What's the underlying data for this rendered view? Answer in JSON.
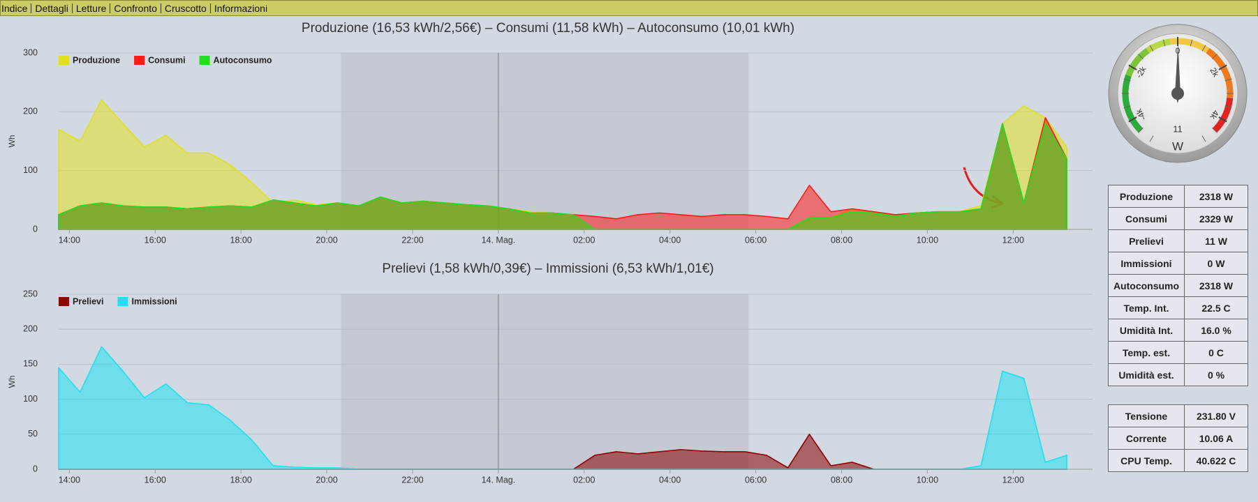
{
  "nav": [
    "Indice",
    "Dettagli",
    "Letture",
    "Confronto",
    "Cruscotto",
    "Informazioni"
  ],
  "chart_data": [
    {
      "type": "area",
      "title": "Produzione (16,53 kWh/2,56€) – Consumi (11,58 kWh) – Autoconsumo (10,01 kWh)",
      "y_label": "Wh",
      "legend": "top-left",
      "grid": true,
      "xlim": [
        13.75,
        37.85
      ],
      "ylim": [
        0,
        300
      ],
      "yticks": [
        0,
        100,
        200,
        300
      ],
      "xticks": [
        {
          "value": 14,
          "label": "14:00"
        },
        {
          "value": 16,
          "label": "16:00"
        },
        {
          "value": 18,
          "label": "18:00"
        },
        {
          "value": 20,
          "label": "20:00"
        },
        {
          "value": 22,
          "label": "22:00"
        },
        {
          "value": 24,
          "label": "14. Mag."
        },
        {
          "value": 26,
          "label": "02:00"
        },
        {
          "value": 28,
          "label": "04:00"
        },
        {
          "value": 30,
          "label": "06:00"
        },
        {
          "value": 32,
          "label": "08:00"
        },
        {
          "value": 34,
          "label": "10:00"
        },
        {
          "value": 36,
          "label": "12:00"
        }
      ],
      "night_band": [
        20.33,
        29.83
      ],
      "day_line": 24,
      "x": [
        13.75,
        14.25,
        14.75,
        15.25,
        15.75,
        16.25,
        16.75,
        17.25,
        17.75,
        18.25,
        18.75,
        19.25,
        19.75,
        20.25,
        20.75,
        21.25,
        21.75,
        22.25,
        22.75,
        23.25,
        23.75,
        24.25,
        24.75,
        25.25,
        25.75,
        26.25,
        26.75,
        27.25,
        27.75,
        28.25,
        28.75,
        29.25,
        29.75,
        30.25,
        30.75,
        31.25,
        31.75,
        32.25,
        32.75,
        33.25,
        33.75,
        34.25,
        34.75,
        35.25,
        35.75,
        36.25,
        36.75,
        37.25
      ],
      "series": [
        {
          "name": "Produzione",
          "color": "#e0e020",
          "values": [
            170,
            150,
            220,
            180,
            140,
            160,
            130,
            130,
            110,
            80,
            45,
            50,
            42,
            45,
            40,
            55,
            45,
            45,
            45,
            40,
            40,
            35,
            30,
            28,
            25,
            0,
            0,
            0,
            0,
            0,
            0,
            0,
            0,
            0,
            0,
            20,
            20,
            35,
            30,
            22,
            28,
            30,
            30,
            40,
            180,
            210,
            190,
            140
          ]
        },
        {
          "name": "Consumi",
          "color": "#ff1a1a",
          "values": [
            25,
            40,
            45,
            40,
            38,
            38,
            35,
            38,
            40,
            38,
            50,
            45,
            40,
            45,
            40,
            55,
            45,
            48,
            45,
            42,
            40,
            35,
            28,
            28,
            25,
            22,
            18,
            25,
            28,
            25,
            22,
            25,
            25,
            22,
            18,
            75,
            30,
            35,
            30,
            25,
            28,
            30,
            30,
            35,
            180,
            45,
            190,
            120
          ]
        },
        {
          "name": "Autoconsumo",
          "color": "#22dd22",
          "values": [
            25,
            40,
            45,
            40,
            38,
            38,
            35,
            38,
            40,
            38,
            50,
            45,
            40,
            45,
            40,
            55,
            45,
            48,
            45,
            42,
            40,
            35,
            28,
            28,
            25,
            0,
            0,
            0,
            0,
            0,
            0,
            0,
            0,
            0,
            0,
            20,
            20,
            30,
            28,
            22,
            28,
            30,
            30,
            35,
            180,
            45,
            180,
            120
          ]
        }
      ]
    },
    {
      "type": "area",
      "title": "Prelievi (1,58 kWh/0,39€) – Immissioni (6,53 kWh/1,01€)",
      "y_label": "Wh",
      "legend": "top-left",
      "grid": true,
      "xlim": [
        13.75,
        37.85
      ],
      "ylim": [
        0,
        250
      ],
      "yticks": [
        0,
        50,
        100,
        150,
        200,
        250
      ],
      "xticks": [
        {
          "value": 14,
          "label": "14:00"
        },
        {
          "value": 16,
          "label": "16:00"
        },
        {
          "value": 18,
          "label": "18:00"
        },
        {
          "value": 20,
          "label": "20:00"
        },
        {
          "value": 22,
          "label": "22:00"
        },
        {
          "value": 24,
          "label": "14. Mag."
        },
        {
          "value": 26,
          "label": "02:00"
        },
        {
          "value": 28,
          "label": "04:00"
        },
        {
          "value": 30,
          "label": "06:00"
        },
        {
          "value": 32,
          "label": "08:00"
        },
        {
          "value": 34,
          "label": "10:00"
        },
        {
          "value": 36,
          "label": "12:00"
        }
      ],
      "night_band": [
        20.33,
        29.83
      ],
      "day_line": 24,
      "x": [
        13.75,
        14.25,
        14.75,
        15.25,
        15.75,
        16.25,
        16.75,
        17.25,
        17.75,
        18.25,
        18.75,
        19.25,
        19.75,
        20.25,
        20.75,
        21.25,
        21.75,
        22.25,
        22.75,
        23.25,
        23.75,
        24.25,
        24.75,
        25.25,
        25.75,
        26.25,
        26.75,
        27.25,
        27.75,
        28.25,
        28.75,
        29.25,
        29.75,
        30.25,
        30.75,
        31.25,
        31.75,
        32.25,
        32.75,
        33.25,
        33.75,
        34.25,
        34.75,
        35.25,
        35.75,
        36.25,
        36.75,
        37.25
      ],
      "series": [
        {
          "name": "Prelievi",
          "color": "#8b0000",
          "values": [
            0,
            0,
            0,
            0,
            0,
            0,
            0,
            0,
            0,
            0,
            0,
            0,
            0,
            0,
            0,
            0,
            0,
            0,
            0,
            0,
            0,
            0,
            0,
            0,
            0,
            20,
            25,
            22,
            25,
            28,
            26,
            25,
            25,
            20,
            2,
            50,
            5,
            10,
            0,
            0,
            0,
            0,
            0,
            0,
            0,
            0,
            0,
            0
          ]
        },
        {
          "name": "Immissioni",
          "color": "#1ee0f0",
          "values": [
            145,
            110,
            175,
            140,
            102,
            122,
            95,
            92,
            70,
            42,
            5,
            3,
            2,
            2,
            0,
            0,
            0,
            0,
            0,
            0,
            0,
            0,
            0,
            0,
            0,
            0,
            0,
            0,
            0,
            0,
            0,
            0,
            0,
            0,
            0,
            0,
            0,
            0,
            0,
            0,
            0,
            0,
            0,
            5,
            140,
            130,
            10,
            20
          ]
        }
      ]
    }
  ],
  "gauge": {
    "value": 11,
    "unit": "W",
    "lim": [
      -5000,
      5000
    ],
    "ticks": [
      {
        "value": -4000,
        "label": "-4k"
      },
      {
        "value": -2000,
        "label": "-2k"
      },
      0,
      {
        "value": 2000,
        "label": "2k"
      },
      {
        "value": 4000,
        "label": "4k"
      }
    ]
  },
  "tables": [
    {
      "rows": [
        [
          "Produzione",
          "2318 W"
        ],
        [
          "Consumi",
          "2329 W"
        ],
        [
          "Prelievi",
          "11 W"
        ],
        [
          "Immissioni",
          "0 W"
        ],
        [
          "Autoconsumo",
          "2318 W"
        ],
        [
          "Temp. Int.",
          "22.5 C"
        ],
        [
          "Umidità Int.",
          "16.0 %"
        ],
        [
          "Temp. est.",
          "0 C"
        ],
        [
          "Umidità est.",
          "0 %"
        ]
      ]
    },
    {
      "rows": [
        [
          "Tensione",
          "231.80 V"
        ],
        [
          "Corrente",
          "10.06 A"
        ],
        [
          "CPU Temp.",
          "40.622 C"
        ]
      ]
    }
  ]
}
